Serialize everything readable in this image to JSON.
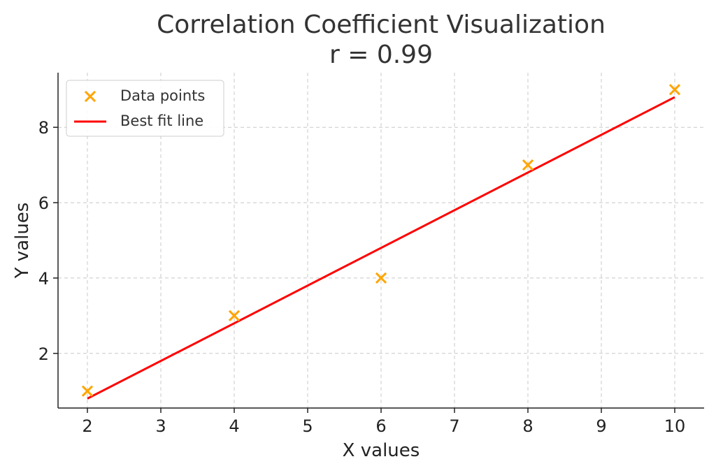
{
  "chart_data": {
    "type": "scatter",
    "title": "Correlation Coefficient Visualization",
    "subtitle": "r = 0.99",
    "xlabel": "X values",
    "ylabel": "Y values",
    "xlim": [
      1.6,
      10.4
    ],
    "ylim": [
      0.55,
      9.45
    ],
    "xticks": [
      2,
      3,
      4,
      5,
      6,
      7,
      8,
      9,
      10
    ],
    "yticks": [
      2,
      4,
      6,
      8
    ],
    "grid": true,
    "legend_position": "top-left",
    "series": [
      {
        "name": "Data points",
        "kind": "scatter",
        "marker": "x",
        "color": "#FFA500",
        "x": [
          2,
          4,
          6,
          8,
          10
        ],
        "y": [
          1,
          3,
          4,
          7,
          9
        ]
      },
      {
        "name": "Best fit line",
        "kind": "line",
        "color": "#FF0000",
        "x": [
          2,
          10
        ],
        "y": [
          0.8,
          8.8
        ]
      }
    ]
  }
}
